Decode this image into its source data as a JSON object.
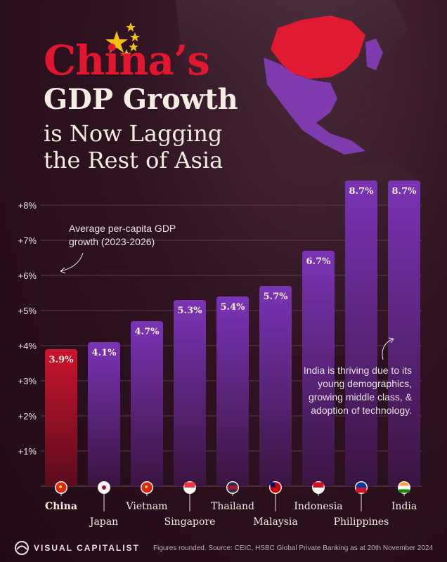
{
  "title": {
    "line1": "China’s",
    "line2": "GDP Growth",
    "line3": "is Now Lagging",
    "line4": "the Rest of Asia"
  },
  "annotations": {
    "left": [
      "Average per-capita GDP",
      "growth (2023-2026)"
    ],
    "right": [
      "India is thriving due to its",
      "young demographics,",
      "growing middle class, &",
      "adoption of technology."
    ]
  },
  "footer": {
    "brand": "VISUAL CAPITALIST",
    "source": "Figures rounded. Source: CEIC, HSBC Global Private Banking as at 20th November 2024"
  },
  "colors": {
    "china_bar": "#c8142c",
    "other_bar": "#7030a8",
    "background": "#2a0f1d",
    "title_red": "#e3162f"
  },
  "chart_data": {
    "type": "bar",
    "categories": [
      "China",
      "Japan",
      "Vietnam",
      "Singapore",
      "Thailand",
      "Malaysia",
      "Indonesia",
      "Philippines",
      "India"
    ],
    "values": [
      3.9,
      4.1,
      4.7,
      5.3,
      5.4,
      5.7,
      6.7,
      8.7,
      8.7
    ],
    "value_labels": [
      "3.9%",
      "4.1%",
      "4.7%",
      "5.3%",
      "5.4%",
      "5.7%",
      "6.7%",
      "8.7%",
      "8.7%"
    ],
    "flag_icons": [
      "china-flag-icon",
      "japan-flag-icon",
      "vietnam-flag-icon",
      "singapore-flag-icon",
      "thailand-flag-icon",
      "malaysia-flag-icon",
      "indonesia-flag-icon",
      "philippines-flag-icon",
      "india-flag-icon"
    ],
    "yticks": [
      "+1%",
      "+2%",
      "+3%",
      "+4%",
      "+5%",
      "+6%",
      "+7%",
      "+8%"
    ],
    "ylim": [
      0,
      8.7
    ],
    "grid": true,
    "highlight": "China"
  }
}
